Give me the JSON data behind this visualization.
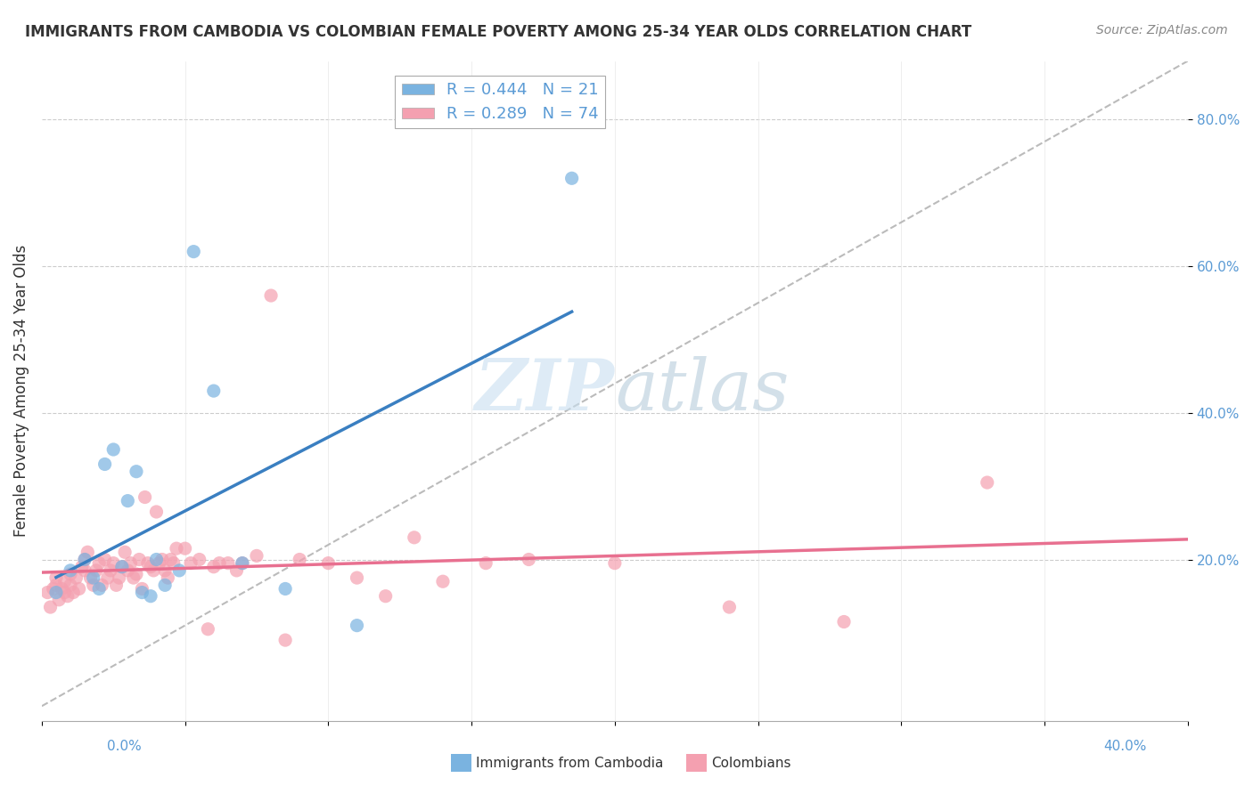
{
  "title": "IMMIGRANTS FROM CAMBODIA VS COLOMBIAN FEMALE POVERTY AMONG 25-34 YEAR OLDS CORRELATION CHART",
  "source": "Source: ZipAtlas.com",
  "ylabel": "Female Poverty Among 25-34 Year Olds",
  "xlim": [
    0.0,
    0.4
  ],
  "ylim": [
    -0.02,
    0.88
  ],
  "legend_cambodia": "R = 0.444   N = 21",
  "legend_colombians": "R = 0.289   N = 74",
  "color_cambodia": "#7ab3e0",
  "color_colombians": "#f4a0b0",
  "color_line_cambodia": "#3a7fc1",
  "color_line_colombians": "#e87090",
  "color_diagonal": "#bbbbbb",
  "watermark_zip": "ZIP",
  "watermark_atlas": "atlas",
  "cambodia_x": [
    0.005,
    0.01,
    0.015,
    0.018,
    0.02,
    0.022,
    0.025,
    0.028,
    0.03,
    0.033,
    0.035,
    0.038,
    0.04,
    0.043,
    0.048,
    0.053,
    0.06,
    0.07,
    0.085,
    0.11,
    0.185
  ],
  "cambodia_y": [
    0.155,
    0.185,
    0.2,
    0.175,
    0.16,
    0.33,
    0.35,
    0.19,
    0.28,
    0.32,
    0.155,
    0.15,
    0.2,
    0.165,
    0.185,
    0.62,
    0.43,
    0.195,
    0.16,
    0.11,
    0.72
  ],
  "colombians_x": [
    0.002,
    0.003,
    0.004,
    0.005,
    0.005,
    0.006,
    0.007,
    0.008,
    0.008,
    0.009,
    0.01,
    0.01,
    0.011,
    0.012,
    0.013,
    0.014,
    0.015,
    0.015,
    0.016,
    0.017,
    0.018,
    0.019,
    0.02,
    0.021,
    0.022,
    0.023,
    0.024,
    0.025,
    0.026,
    0.027,
    0.028,
    0.029,
    0.03,
    0.031,
    0.032,
    0.033,
    0.034,
    0.035,
    0.036,
    0.037,
    0.038,
    0.039,
    0.04,
    0.041,
    0.042,
    0.043,
    0.044,
    0.045,
    0.046,
    0.047,
    0.05,
    0.052,
    0.055,
    0.058,
    0.06,
    0.062,
    0.065,
    0.068,
    0.07,
    0.075,
    0.08,
    0.085,
    0.09,
    0.1,
    0.11,
    0.12,
    0.13,
    0.14,
    0.155,
    0.17,
    0.2,
    0.24,
    0.28,
    0.33
  ],
  "colombians_y": [
    0.155,
    0.135,
    0.16,
    0.165,
    0.175,
    0.145,
    0.16,
    0.17,
    0.155,
    0.15,
    0.165,
    0.18,
    0.155,
    0.175,
    0.16,
    0.19,
    0.2,
    0.185,
    0.21,
    0.175,
    0.165,
    0.185,
    0.195,
    0.165,
    0.2,
    0.175,
    0.185,
    0.195,
    0.165,
    0.175,
    0.19,
    0.21,
    0.185,
    0.195,
    0.175,
    0.18,
    0.2,
    0.16,
    0.285,
    0.195,
    0.19,
    0.185,
    0.265,
    0.195,
    0.2,
    0.185,
    0.175,
    0.2,
    0.195,
    0.215,
    0.215,
    0.195,
    0.2,
    0.105,
    0.19,
    0.195,
    0.195,
    0.185,
    0.195,
    0.205,
    0.56,
    0.09,
    0.2,
    0.195,
    0.175,
    0.15,
    0.23,
    0.17,
    0.195,
    0.2,
    0.195,
    0.135,
    0.115,
    0.305
  ]
}
